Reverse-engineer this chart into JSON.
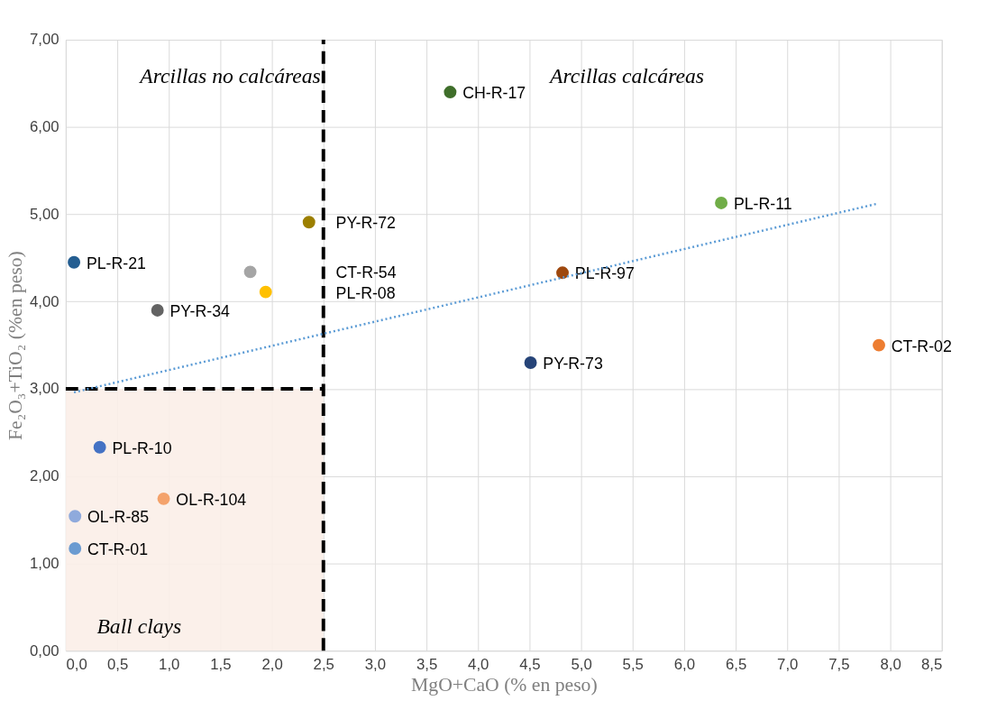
{
  "chart_data": {
    "type": "scatter",
    "xlabel": "MgO+CaO (% en peso)",
    "ylabel": "Fe₂O₃+TiO₂ (%en peso)",
    "xlim": [
      0,
      8.5
    ],
    "ylim": [
      0,
      7
    ],
    "xticks": [
      {
        "value": 0,
        "label": "0,0"
      },
      {
        "value": 0.5,
        "label": "0,5"
      },
      {
        "value": 1,
        "label": "1,0"
      },
      {
        "value": 1.5,
        "label": "1,5"
      },
      {
        "value": 2,
        "label": "2,0"
      },
      {
        "value": 2.5,
        "label": "2,5"
      },
      {
        "value": 3,
        "label": "3,0"
      },
      {
        "value": 3.5,
        "label": "3,5"
      },
      {
        "value": 4,
        "label": "4,0"
      },
      {
        "value": 4.5,
        "label": "4,5"
      },
      {
        "value": 5,
        "label": "5,0"
      },
      {
        "value": 5.5,
        "label": "5,5"
      },
      {
        "value": 6,
        "label": "6,0"
      },
      {
        "value": 6.5,
        "label": "6,5"
      },
      {
        "value": 7,
        "label": "7,0"
      },
      {
        "value": 7.5,
        "label": "7,5"
      },
      {
        "value": 8,
        "label": "8,0"
      },
      {
        "value": 8.5,
        "label": "8,5"
      }
    ],
    "yticks": [
      {
        "value": 0,
        "label": "0,00"
      },
      {
        "value": 1,
        "label": "1,00"
      },
      {
        "value": 2,
        "label": "2,00"
      },
      {
        "value": 3,
        "label": "3,00"
      },
      {
        "value": 4,
        "label": "4,00"
      },
      {
        "value": 5,
        "label": "5,00"
      },
      {
        "value": 6,
        "label": "6,00"
      },
      {
        "value": 7,
        "label": "7,00"
      }
    ],
    "grid": true,
    "marker": "circle",
    "series": [
      {
        "name": "CH-R-17",
        "color": "#3f6e2a",
        "x": [
          3.73
        ],
        "values": [
          6.4
        ]
      },
      {
        "name": "PL-R-11",
        "color": "#70ad47",
        "x": [
          6.36
        ],
        "values": [
          5.13
        ]
      },
      {
        "name": "PY-R-72",
        "color": "#9c7f00",
        "x": [
          2.36
        ],
        "values": [
          4.91
        ]
      },
      {
        "name": "PL-R-21",
        "color": "#255e91",
        "x": [
          0.08
        ],
        "values": [
          4.45
        ]
      },
      {
        "name": "CT-R-54",
        "color": "#a5a5a5",
        "x": [
          1.79
        ],
        "values": [
          4.34
        ]
      },
      {
        "name": "PL-R-97",
        "color": "#9e480e",
        "x": [
          4.82
        ],
        "values": [
          4.33
        ]
      },
      {
        "name": "PL-R-08",
        "color": "#ffc000",
        "x": [
          1.94
        ],
        "values": [
          4.11
        ]
      },
      {
        "name": "PY-R-34",
        "color": "#636363",
        "x": [
          0.89
        ],
        "values": [
          3.9
        ]
      },
      {
        "name": "PY-R-73",
        "color": "#264478",
        "x": [
          4.51
        ],
        "values": [
          3.3
        ]
      },
      {
        "name": "CT-R-02",
        "color": "#ed7d31",
        "x": [
          7.89
        ],
        "values": [
          3.5
        ]
      },
      {
        "name": "PL-R-10",
        "color": "#4472c4",
        "x": [
          0.33
        ],
        "values": [
          2.33
        ]
      },
      {
        "name": "OL-R-104",
        "color": "#f4a26b",
        "x": [
          0.95
        ],
        "values": [
          1.74
        ]
      },
      {
        "name": "OL-R-85",
        "color": "#8faadc",
        "x": [
          0.09
        ],
        "values": [
          1.54
        ]
      },
      {
        "name": "CT-R-01",
        "color": "#6b9bd1",
        "x": [
          0.09
        ],
        "values": [
          1.17
        ]
      },
      {
        "type": "line",
        "line_style": "dotted",
        "marker": "none",
        "color": "#5b9bd5",
        "x": [
          0.08,
          7.87
        ],
        "values": [
          2.96,
          5.12
        ]
      }
    ],
    "ref_lines": [
      {
        "axis": "x",
        "value": 2.5,
        "color": "#000000",
        "line_style": "dashed"
      },
      {
        "axis": "y",
        "value": 3,
        "color": "#000000",
        "line_style": "dashed"
      }
    ],
    "bands": [
      {
        "axis": "y",
        "from": 0,
        "to": 3,
        "label": "Ball clays",
        "color": "#fbeee8"
      }
    ],
    "annotations": [
      "Arcillas no calcáreas",
      "Arcillas calcáreas"
    ]
  }
}
